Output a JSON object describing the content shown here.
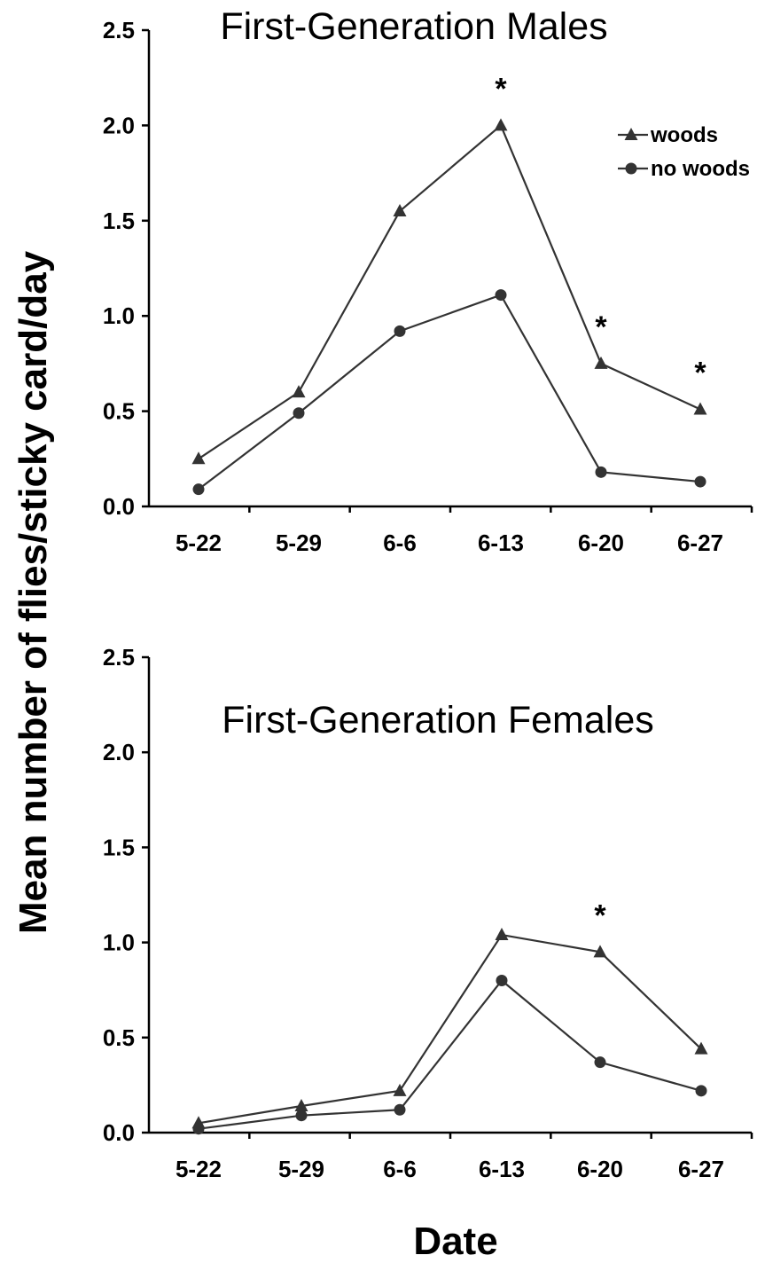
{
  "shared": {
    "ylabel": "Mean number of flies/sticky card/day",
    "xlabel": "Date"
  },
  "chart_data": [
    {
      "type": "line",
      "title": "First-Generation Males",
      "categories": [
        "5-22",
        "5-29",
        "6-6",
        "6-13",
        "6-20",
        "6-27"
      ],
      "series": [
        {
          "name": "woods",
          "marker": "triangle",
          "values": [
            0.25,
            0.6,
            1.55,
            2.0,
            0.75,
            0.51
          ]
        },
        {
          "name": "no woods",
          "marker": "circle",
          "values": [
            0.09,
            0.49,
            0.92,
            1.11,
            0.18,
            0.13
          ]
        }
      ],
      "significance": [
        {
          "category": "6-13",
          "label": "*"
        },
        {
          "category": "6-20",
          "label": "*"
        },
        {
          "category": "6-27",
          "label": "*"
        }
      ],
      "ylim": [
        0,
        2.5
      ],
      "yticks": [
        "0.0",
        "0.5",
        "1.0",
        "1.5",
        "2.0",
        "2.5"
      ],
      "legend": "top-right",
      "grid": false
    },
    {
      "type": "line",
      "title": "First-Generation Females",
      "categories": [
        "5-22",
        "5-29",
        "6-6",
        "6-13",
        "6-20",
        "6-27"
      ],
      "series": [
        {
          "name": "woods",
          "marker": "triangle",
          "values": [
            0.05,
            0.14,
            0.22,
            1.04,
            0.95,
            0.44
          ]
        },
        {
          "name": "no woods",
          "marker": "circle",
          "values": [
            0.02,
            0.09,
            0.12,
            0.8,
            0.37,
            0.22
          ]
        }
      ],
      "significance": [
        {
          "category": "6-20",
          "label": "*"
        }
      ],
      "ylim": [
        0,
        2.5
      ],
      "yticks": [
        "0.0",
        "0.5",
        "1.0",
        "1.5",
        "2.0",
        "2.5"
      ],
      "legend": "none",
      "grid": false
    }
  ],
  "colors": {
    "series": "#333333",
    "axes": "#000000",
    "background": "#ffffff"
  }
}
